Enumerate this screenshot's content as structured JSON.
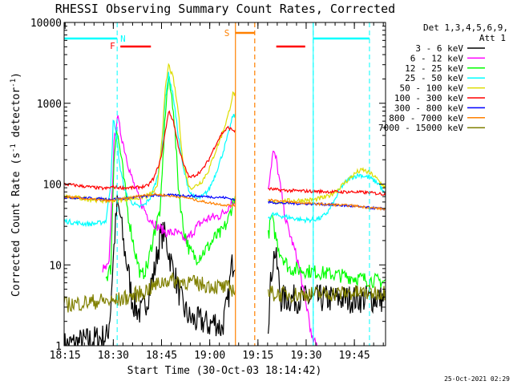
{
  "chart_data": {
    "type": "line",
    "title": "RHESSI Observing Summary Count Rates, Corrected",
    "xlabel": "Start Time (30-Oct-03 18:14:42)",
    "ylabel_parts": [
      "Corrected Count Rate (s",
      "-1",
      " detector",
      "-1",
      ")"
    ],
    "x_unit": "minutes after 18:14:42",
    "xlim": [
      0,
      100
    ],
    "ylim": [
      1,
      10000
    ],
    "yscale": "log",
    "x_ticks": [
      {
        "label": "18:15",
        "value": 0.3
      },
      {
        "label": "18:30",
        "value": 15.3
      },
      {
        "label": "18:45",
        "value": 30.3
      },
      {
        "label": "19:00",
        "value": 45.3
      },
      {
        "label": "19:15",
        "value": 60.3
      },
      {
        "label": "19:30",
        "value": 75.3
      },
      {
        "label": "19:45",
        "value": 90.3
      }
    ],
    "y_ticks": [
      {
        "label": "1",
        "value": 1
      },
      {
        "label": "10",
        "value": 10
      },
      {
        "label": "100",
        "value": 100
      },
      {
        "label": "1000",
        "value": 1000
      },
      {
        "label": "10000",
        "value": 10000
      }
    ],
    "legend_header": [
      "Det 1,3,4,5,6,9,",
      "Att 1"
    ],
    "legend_position": "top-right outside",
    "data_gap": [
      53.3,
      63.3
    ],
    "series": [
      {
        "name": "3 - 6 keV",
        "color": "#000000",
        "points": [
          [
            0,
            1
          ],
          [
            13.5,
            1.3
          ],
          [
            14.5,
            3
          ],
          [
            15,
            8
          ],
          [
            15.8,
            25
          ],
          [
            16.5,
            55
          ],
          [
            17.5,
            40
          ],
          [
            18.5,
            18
          ],
          [
            20,
            8
          ],
          [
            21,
            4
          ],
          [
            22,
            3
          ],
          [
            24,
            2.5
          ],
          [
            26,
            4
          ],
          [
            28,
            8
          ],
          [
            29,
            14
          ],
          [
            30,
            22
          ],
          [
            31,
            25
          ],
          [
            32,
            18
          ],
          [
            33,
            12
          ],
          [
            35,
            6
          ],
          [
            37,
            3
          ],
          [
            39,
            2.2
          ],
          [
            41,
            2
          ],
          [
            43,
            2
          ],
          [
            45,
            1.8
          ],
          [
            47,
            2
          ],
          [
            49,
            1.6
          ],
          [
            51,
            3.5
          ],
          [
            52,
            9
          ],
          [
            53,
            12
          ],
          [
            53.3,
            12
          ],
          [
            63.3,
            1.5
          ],
          [
            64.5,
            8
          ],
          [
            65.5,
            15
          ],
          [
            66.5,
            8
          ],
          [
            67.5,
            3.8
          ],
          [
            71,
            3.8
          ],
          [
            75,
            3.8
          ],
          [
            82,
            3.8
          ],
          [
            90,
            3.8
          ],
          [
            95,
            3.8
          ],
          [
            100,
            3.8
          ]
        ]
      },
      {
        "name": "6 - 12 keV",
        "color": "#ff00ff",
        "points": [
          [
            12,
            9
          ],
          [
            13,
            9
          ],
          [
            14,
            10
          ],
          [
            14.8,
            60
          ],
          [
            15.5,
            300
          ],
          [
            16.5,
            700
          ],
          [
            17.5,
            450
          ],
          [
            19,
            250
          ],
          [
            21,
            120
          ],
          [
            23,
            70
          ],
          [
            26,
            40
          ],
          [
            29,
            30
          ],
          [
            32,
            25
          ],
          [
            35,
            25
          ],
          [
            38,
            20
          ],
          [
            42,
            32
          ],
          [
            45,
            38
          ],
          [
            48,
            40
          ],
          [
            50,
            45
          ],
          [
            52,
            60
          ],
          [
            53.3,
            60
          ],
          [
            63.3,
            80
          ],
          [
            65,
            250
          ],
          [
            66,
            200
          ],
          [
            67.5,
            80
          ],
          [
            69,
            35
          ],
          [
            72,
            14
          ],
          [
            73,
            10
          ],
          [
            74,
            6
          ],
          [
            75,
            3.5
          ],
          [
            76,
            2.5
          ],
          [
            77,
            1.2
          ],
          [
            79,
            1
          ]
        ]
      },
      {
        "name": "12 - 25 keV",
        "color": "#00ff00",
        "points": [
          [
            13,
            7
          ],
          [
            14.5,
            9
          ],
          [
            15.5,
            200
          ],
          [
            16.2,
            500
          ],
          [
            17.5,
            250
          ],
          [
            20,
            40
          ],
          [
            22,
            15
          ],
          [
            24,
            7
          ],
          [
            26,
            10
          ],
          [
            28,
            25
          ],
          [
            30,
            50
          ],
          [
            31.5,
            800
          ],
          [
            32.5,
            2000
          ],
          [
            34,
            900
          ],
          [
            35.5,
            100
          ],
          [
            37,
            30
          ],
          [
            39,
            15
          ],
          [
            41,
            12
          ],
          [
            43,
            14
          ],
          [
            45,
            17
          ],
          [
            47,
            22
          ],
          [
            49,
            25
          ],
          [
            51,
            35
          ],
          [
            53,
            70
          ],
          [
            53.3,
            70
          ],
          [
            63.3,
            20
          ],
          [
            64.5,
            40
          ],
          [
            65.5,
            25
          ],
          [
            67,
            15
          ],
          [
            70,
            9
          ],
          [
            75,
            8.5
          ],
          [
            80,
            8
          ],
          [
            85,
            7.5
          ],
          [
            90,
            7
          ],
          [
            95,
            6.5
          ],
          [
            100,
            6.2
          ]
        ]
      },
      {
        "name": "25 - 50 keV",
        "color": "#00ffff",
        "points": [
          [
            0,
            35
          ],
          [
            4,
            33
          ],
          [
            8,
            32
          ],
          [
            11,
            33
          ],
          [
            13,
            35
          ],
          [
            14.5,
            100
          ],
          [
            15.3,
            650
          ],
          [
            16.2,
            400
          ],
          [
            17.5,
            150
          ],
          [
            19,
            80
          ],
          [
            21,
            60
          ],
          [
            23,
            52
          ],
          [
            25,
            55
          ],
          [
            27,
            70
          ],
          [
            29,
            120
          ],
          [
            30.5,
            300
          ],
          [
            31.5,
            1200
          ],
          [
            32.5,
            2300
          ],
          [
            34,
            1200
          ],
          [
            35.5,
            400
          ],
          [
            37,
            160
          ],
          [
            39,
            80
          ],
          [
            41,
            65
          ],
          [
            43,
            70
          ],
          [
            45,
            85
          ],
          [
            47,
            130
          ],
          [
            49,
            220
          ],
          [
            51,
            400
          ],
          [
            52.5,
            700
          ],
          [
            53.3,
            700
          ],
          [
            63.3,
            38
          ],
          [
            65,
            42
          ],
          [
            68,
            40
          ],
          [
            71,
            38
          ],
          [
            74,
            36
          ],
          [
            77,
            36
          ],
          [
            80,
            38
          ],
          [
            82,
            45
          ],
          [
            84,
            60
          ],
          [
            86,
            90
          ],
          [
            89,
            120
          ],
          [
            92,
            130
          ],
          [
            95,
            120
          ],
          [
            98,
            100
          ],
          [
            100,
            70
          ]
        ]
      },
      {
        "name": "50 - 100 keV",
        "color": "#dddd00",
        "points": [
          [
            0,
            70
          ],
          [
            8,
            65
          ],
          [
            13,
            62
          ],
          [
            16,
            63
          ],
          [
            20,
            66
          ],
          [
            24,
            68
          ],
          [
            27,
            75
          ],
          [
            29,
            90
          ],
          [
            30.5,
            400
          ],
          [
            31.5,
            1500
          ],
          [
            32.5,
            3000
          ],
          [
            34,
            2000
          ],
          [
            35.5,
            800
          ],
          [
            37,
            180
          ],
          [
            39,
            90
          ],
          [
            41,
            95
          ],
          [
            43,
            110
          ],
          [
            45,
            150
          ],
          [
            47,
            250
          ],
          [
            49,
            400
          ],
          [
            51,
            700
          ],
          [
            52.5,
            1300
          ],
          [
            53.3,
            1300
          ],
          [
            63.3,
            58
          ],
          [
            66,
            60
          ],
          [
            70,
            62
          ],
          [
            74,
            63
          ],
          [
            78,
            64
          ],
          [
            82,
            70
          ],
          [
            85,
            85
          ],
          [
            88,
            110
          ],
          [
            91,
            140
          ],
          [
            93,
            150
          ],
          [
            96,
            130
          ],
          [
            100,
            90
          ]
        ]
      },
      {
        "name": "100 - 300 keV",
        "color": "#ff0000",
        "points": [
          [
            0,
            100
          ],
          [
            5,
            95
          ],
          [
            10,
            90
          ],
          [
            13,
            88
          ],
          [
            15,
            92
          ],
          [
            18,
            90
          ],
          [
            22,
            90
          ],
          [
            26,
            95
          ],
          [
            28,
            120
          ],
          [
            30,
            200
          ],
          [
            31.5,
            450
          ],
          [
            32.5,
            800
          ],
          [
            34,
            600
          ],
          [
            35.5,
            300
          ],
          [
            37,
            180
          ],
          [
            39,
            120
          ],
          [
            41,
            130
          ],
          [
            43,
            150
          ],
          [
            45,
            200
          ],
          [
            47,
            300
          ],
          [
            49,
            420
          ],
          [
            51,
            500
          ],
          [
            53.3,
            450
          ],
          [
            63.3,
            88
          ],
          [
            66,
            85
          ],
          [
            70,
            83
          ],
          [
            75,
            82
          ],
          [
            80,
            81
          ],
          [
            85,
            80
          ],
          [
            90,
            80
          ],
          [
            95,
            78
          ],
          [
            100,
            75
          ]
        ]
      },
      {
        "name": "300 - 800 keV",
        "color": "#0000ff",
        "points": [
          [
            0,
            68
          ],
          [
            8,
            67
          ],
          [
            14,
            65
          ],
          [
            18,
            66
          ],
          [
            24,
            70
          ],
          [
            28,
            72
          ],
          [
            32,
            73
          ],
          [
            38,
            72
          ],
          [
            44,
            70
          ],
          [
            50,
            68
          ],
          [
            53.3,
            64
          ],
          [
            63.3,
            60
          ],
          [
            68,
            58
          ],
          [
            75,
            57
          ],
          [
            82,
            56
          ],
          [
            90,
            53
          ],
          [
            95,
            51
          ],
          [
            100,
            49
          ]
        ]
      },
      {
        "name": "800 - 7000 keV",
        "color": "#ff8000",
        "points": [
          [
            0,
            70
          ],
          [
            8,
            65
          ],
          [
            14,
            62
          ],
          [
            18,
            65
          ],
          [
            24,
            72
          ],
          [
            28,
            75
          ],
          [
            32,
            72
          ],
          [
            38,
            68
          ],
          [
            42,
            62
          ],
          [
            46,
            58
          ],
          [
            50,
            55
          ],
          [
            53.3,
            54
          ],
          [
            63.3,
            65
          ],
          [
            68,
            61
          ],
          [
            75,
            58
          ],
          [
            82,
            56
          ],
          [
            90,
            54
          ],
          [
            95,
            51
          ],
          [
            100,
            49
          ]
        ]
      },
      {
        "name": "7000 - 15000 keV",
        "color": "#808000",
        "points": [
          [
            0,
            3.2
          ],
          [
            6,
            3.4
          ],
          [
            12,
            3.6
          ],
          [
            15,
            3.5
          ],
          [
            20,
            4
          ],
          [
            24,
            4.5
          ],
          [
            28,
            5.5
          ],
          [
            32,
            6.5
          ],
          [
            38,
            6.2
          ],
          [
            42,
            5.8
          ],
          [
            46,
            5.5
          ],
          [
            50,
            5.2
          ],
          [
            53.3,
            5
          ],
          [
            63.3,
            4.5
          ],
          [
            68,
            4.3
          ],
          [
            75,
            4.3
          ],
          [
            82,
            4.4
          ],
          [
            90,
            4.5
          ],
          [
            95,
            4.5
          ],
          [
            100,
            4.6
          ]
        ]
      }
    ],
    "annotations": {
      "saa": {
        "label": "S",
        "color": "#ff8000",
        "start": 53.3,
        "end": 59.3,
        "start_style": "solid",
        "end_style": "dashed"
      },
      "flare": {
        "label": "F",
        "color": "#ff0000",
        "segments": [
          [
            17.5,
            27
          ],
          [
            66,
            75
          ]
        ]
      },
      "night": {
        "label": "N",
        "color": "#00ffff",
        "segments": [
          [
            0,
            16.5
          ],
          [
            77.5,
            95
          ]
        ],
        "boundaries": [
          16.5,
          77.5,
          95
        ]
      }
    }
  },
  "footer_date": "25-Oct-2021 02:29"
}
